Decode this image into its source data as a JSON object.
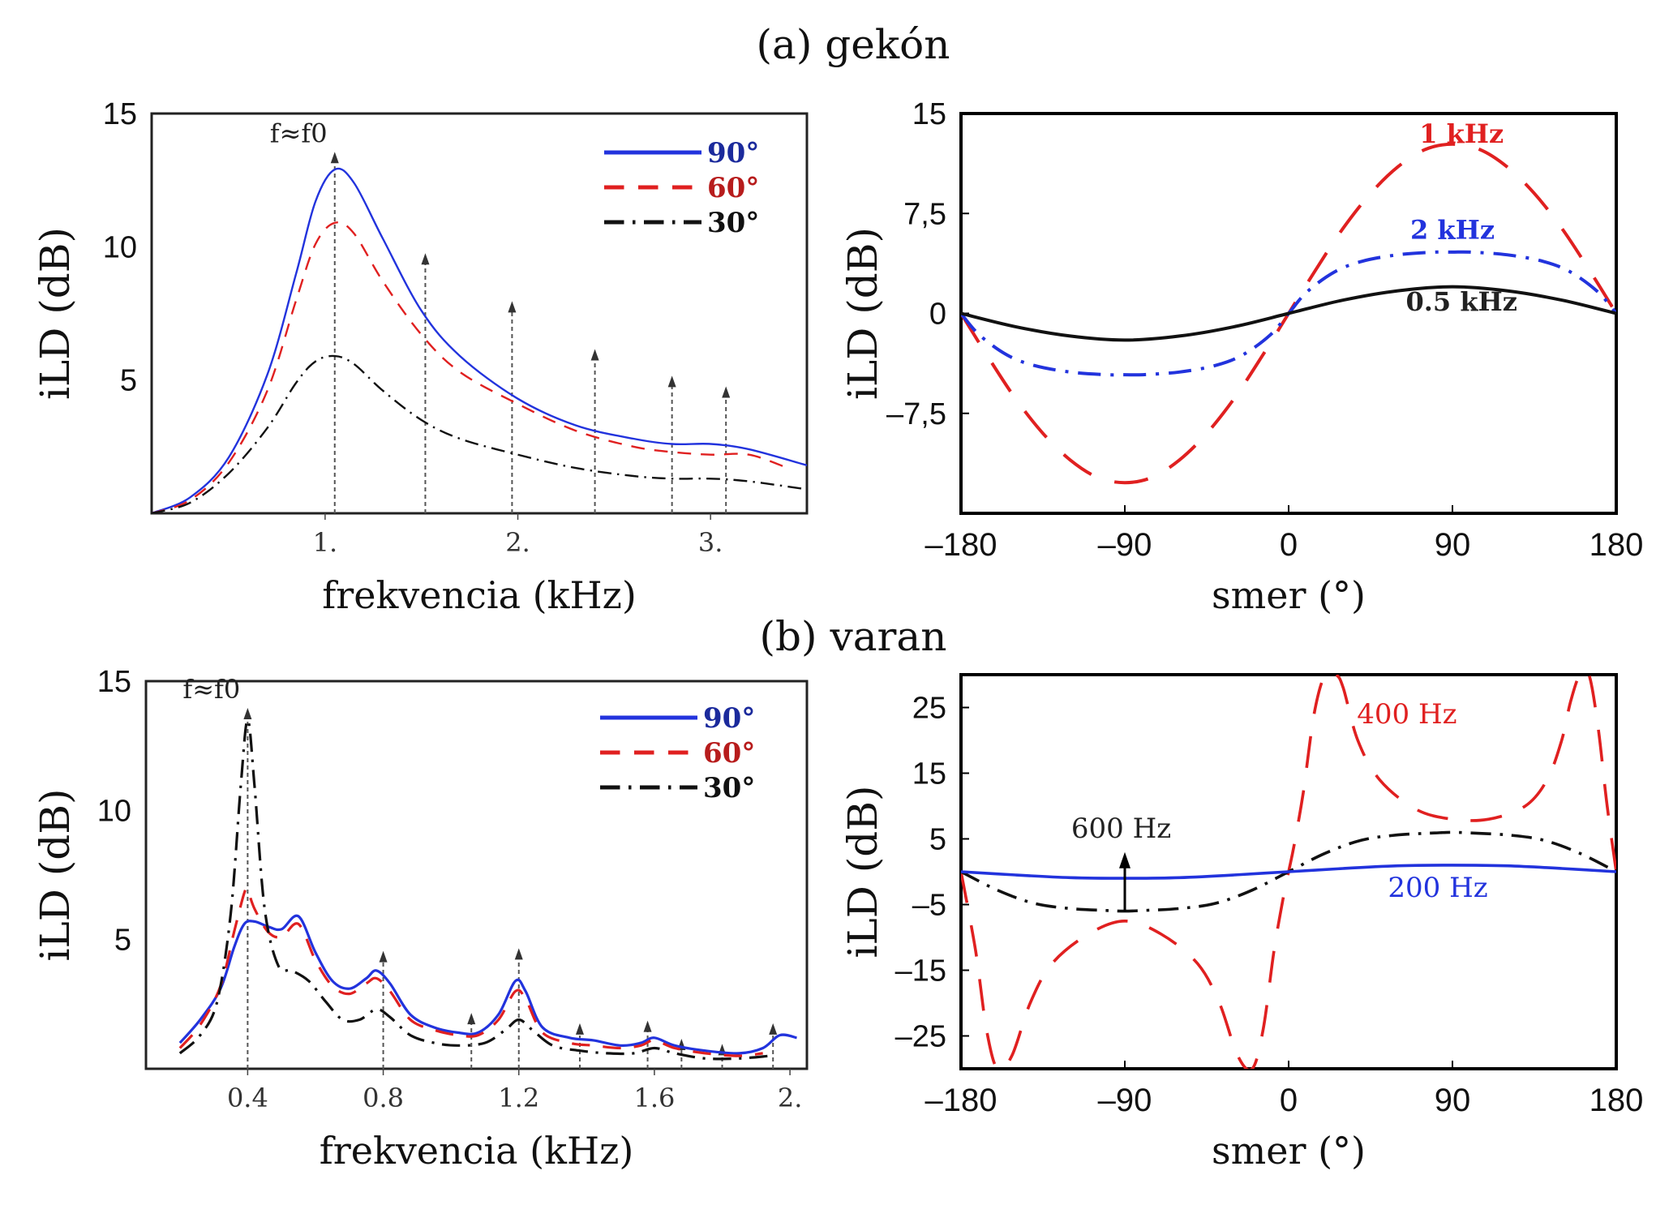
{
  "figure": {
    "panel_a_title": "(a) gekón",
    "panel_b_title": "(b) varan"
  },
  "colors": {
    "blue": "#2233dd",
    "red": "#e02020",
    "black": "#111111",
    "arrow": "#555555",
    "legend_blue": "#1b2a9c",
    "legend_red": "#b71c1c"
  },
  "chart_data": [
    {
      "id": "gekon-frequency",
      "type": "line",
      "xlabel": "frekvencia (kHz)",
      "ylabel": "iLD (dB)",
      "xlim": [
        0.1,
        3.5
      ],
      "ylim": [
        0,
        15
      ],
      "xticks": [
        1.0,
        2.0,
        3.0
      ],
      "xtick_labels": [
        "1.",
        "2.",
        "3."
      ],
      "yticks": [
        5,
        10,
        15
      ],
      "ytick_labels": [
        "5",
        "10",
        "15"
      ],
      "annotation": "f≈f0",
      "legend_position": "top-right",
      "series": [
        {
          "name": "90°",
          "style": "solid",
          "color": "blue",
          "x": [
            0.1,
            0.3,
            0.5,
            0.7,
            0.85,
            0.95,
            1.05,
            1.15,
            1.3,
            1.5,
            1.7,
            2.0,
            2.3,
            2.6,
            2.8,
            3.0,
            3.2,
            3.5
          ],
          "y": [
            0.0,
            0.6,
            2.1,
            5.2,
            9.0,
            11.7,
            12.9,
            12.4,
            10.3,
            7.6,
            5.9,
            4.3,
            3.3,
            2.8,
            2.6,
            2.6,
            2.4,
            1.8
          ]
        },
        {
          "name": "60°",
          "style": "dashed",
          "color": "red",
          "x": [
            0.1,
            0.3,
            0.5,
            0.7,
            0.85,
            0.95,
            1.05,
            1.15,
            1.3,
            1.5,
            1.7,
            2.0,
            2.3,
            2.6,
            2.8,
            3.0,
            3.2,
            3.4
          ],
          "y": [
            0.0,
            0.5,
            1.9,
            4.6,
            8.0,
            10.1,
            10.9,
            10.5,
            8.7,
            6.7,
            5.3,
            4.1,
            3.1,
            2.5,
            2.3,
            2.2,
            2.2,
            1.7
          ]
        },
        {
          "name": "30°",
          "style": "dashdot",
          "color": "black",
          "x": [
            0.1,
            0.3,
            0.5,
            0.7,
            0.85,
            0.95,
            1.05,
            1.15,
            1.3,
            1.5,
            1.7,
            2.0,
            2.3,
            2.6,
            2.8,
            3.0,
            3.2,
            3.5
          ],
          "y": [
            0.0,
            0.4,
            1.5,
            3.2,
            4.9,
            5.7,
            5.9,
            5.6,
            4.6,
            3.5,
            2.8,
            2.2,
            1.7,
            1.4,
            1.3,
            1.3,
            1.2,
            0.9
          ]
        }
      ],
      "arrows": [
        {
          "x": 1.05,
          "y": 13.5
        },
        {
          "x": 1.52,
          "y": 9.7
        },
        {
          "x": 1.97,
          "y": 7.9
        },
        {
          "x": 2.4,
          "y": 6.1
        },
        {
          "x": 2.8,
          "y": 5.1
        },
        {
          "x": 3.08,
          "y": 4.7
        }
      ]
    },
    {
      "id": "gekon-direction",
      "type": "line",
      "xlabel": "smer (°)",
      "ylabel": "iLD (dB)",
      "xlim": [
        -180,
        180
      ],
      "ylim": [
        -15,
        15
      ],
      "xticks": [
        -180,
        -90,
        0,
        90,
        180
      ],
      "xtick_labels": [
        "–180",
        "–90",
        "0",
        "90",
        "180"
      ],
      "yticks": [
        -7.5,
        0,
        7.5,
        15
      ],
      "ytick_labels": [
        "–7,5",
        "0",
        "7,5",
        "15"
      ],
      "series": [
        {
          "name": "1 kHz",
          "style": "dashed",
          "color": "red",
          "x": [
            -180,
            -165,
            -150,
            -135,
            -120,
            -105,
            -90,
            -75,
            -60,
            -45,
            -30,
            -15,
            0,
            15,
            30,
            45,
            60,
            75,
            90,
            105,
            120,
            135,
            150,
            165,
            180
          ],
          "y": [
            0.0,
            -3.3,
            -6.4,
            -9.0,
            -11.0,
            -12.3,
            -12.7,
            -12.3,
            -11.0,
            -9.0,
            -6.4,
            -3.3,
            0.0,
            3.3,
            6.4,
            9.0,
            11.0,
            12.3,
            12.7,
            12.3,
            11.0,
            9.0,
            6.4,
            3.3,
            0.0
          ]
        },
        {
          "name": "2 kHz",
          "style": "dashdot",
          "color": "blue",
          "x": [
            -180,
            -170,
            -155,
            -140,
            -120,
            -100,
            -90,
            -80,
            -60,
            -40,
            -25,
            -10,
            0,
            10,
            25,
            40,
            60,
            80,
            90,
            100,
            120,
            140,
            155,
            170,
            180
          ],
          "y": [
            0.0,
            -1.6,
            -3.1,
            -3.9,
            -4.4,
            -4.6,
            -4.6,
            -4.6,
            -4.4,
            -3.9,
            -3.1,
            -1.6,
            0.0,
            1.6,
            3.1,
            3.9,
            4.4,
            4.6,
            4.6,
            4.6,
            4.4,
            3.9,
            3.1,
            1.6,
            0.0
          ]
        },
        {
          "name": "0.5 kHz",
          "style": "solid",
          "color": "black",
          "x": [
            -180,
            -150,
            -120,
            -90,
            -60,
            -30,
            0,
            30,
            60,
            90,
            120,
            150,
            180
          ],
          "y": [
            0.0,
            -1.0,
            -1.7,
            -2.0,
            -1.7,
            -1.0,
            0.0,
            1.0,
            1.7,
            2.0,
            1.7,
            1.0,
            0.0
          ]
        }
      ],
      "series_labels": [
        {
          "series": "1 kHz",
          "x": 95,
          "y": 12.8
        },
        {
          "series": "2 kHz",
          "x": 90,
          "y": 5.6
        },
        {
          "series": "0.5 kHz",
          "x": 95,
          "y": 0.2
        }
      ]
    },
    {
      "id": "varan-frequency",
      "type": "line",
      "xlabel": "frekvencia (kHz)",
      "ylabel": "iLD (dB)",
      "xlim": [
        0.1,
        2.05
      ],
      "ylim": [
        0,
        15
      ],
      "xticks": [
        0.4,
        0.8,
        1.2,
        1.6,
        2.0
      ],
      "xtick_labels": [
        "0.4",
        "0.8",
        "1.2",
        "1.6",
        "2."
      ],
      "yticks": [
        5,
        10,
        15
      ],
      "ytick_labels": [
        "5",
        "10",
        "15"
      ],
      "annotation": "f≈f0",
      "legend_position": "top-right",
      "series": [
        {
          "name": "90°",
          "style": "solid",
          "color": "blue",
          "x": [
            0.2,
            0.26,
            0.32,
            0.36,
            0.39,
            0.42,
            0.46,
            0.5,
            0.55,
            0.6,
            0.65,
            0.7,
            0.75,
            0.78,
            0.82,
            0.88,
            0.95,
            1.02,
            1.08,
            1.14,
            1.19,
            1.22,
            1.27,
            1.35,
            1.42,
            1.5,
            1.56,
            1.6,
            1.66,
            1.75,
            1.85,
            1.92,
            1.97,
            2.02
          ],
          "y": [
            1.0,
            1.9,
            3.1,
            4.7,
            5.6,
            5.7,
            5.5,
            5.4,
            5.9,
            4.5,
            3.4,
            3.1,
            3.5,
            3.8,
            3.3,
            2.1,
            1.6,
            1.4,
            1.4,
            2.1,
            3.4,
            3.0,
            1.6,
            1.2,
            1.1,
            0.9,
            1.0,
            1.2,
            0.9,
            0.7,
            0.6,
            0.8,
            1.3,
            1.2
          ]
        },
        {
          "name": "60°",
          "style": "dashed",
          "color": "red",
          "x": [
            0.2,
            0.26,
            0.32,
            0.36,
            0.39,
            0.4,
            0.42,
            0.46,
            0.5,
            0.55,
            0.6,
            0.65,
            0.7,
            0.75,
            0.78,
            0.82,
            0.88,
            0.95,
            1.02,
            1.08,
            1.14,
            1.19,
            1.22,
            1.27,
            1.35,
            1.42,
            1.5,
            1.56,
            1.6,
            1.66,
            1.75,
            1.85,
            1.92
          ],
          "y": [
            0.8,
            1.7,
            3.2,
            5.3,
            6.8,
            6.9,
            6.2,
            5.3,
            5.1,
            5.6,
            4.2,
            3.2,
            2.9,
            3.3,
            3.5,
            3.0,
            1.9,
            1.5,
            1.3,
            1.3,
            1.9,
            3.0,
            2.7,
            1.4,
            1.0,
            0.9,
            0.8,
            0.9,
            1.1,
            0.8,
            0.6,
            0.5,
            0.6
          ]
        },
        {
          "name": "30°",
          "style": "dashdot",
          "color": "black",
          "x": [
            0.2,
            0.26,
            0.31,
            0.35,
            0.38,
            0.4,
            0.42,
            0.45,
            0.49,
            0.53,
            0.58,
            0.63,
            0.68,
            0.73,
            0.78,
            0.82,
            0.88,
            0.95,
            1.02,
            1.1,
            1.16,
            1.2,
            1.24,
            1.3,
            1.38,
            1.46,
            1.54,
            1.6,
            1.66,
            1.75,
            1.85,
            1.94
          ],
          "y": [
            0.6,
            1.3,
            2.6,
            6.0,
            11.0,
            13.5,
            11.0,
            6.2,
            4.0,
            3.8,
            3.4,
            2.6,
            1.9,
            1.9,
            2.3,
            2.0,
            1.3,
            1.0,
            0.9,
            1.0,
            1.5,
            1.9,
            1.5,
            0.9,
            0.7,
            0.6,
            0.6,
            0.8,
            0.6,
            0.4,
            0.4,
            0.5
          ]
        }
      ],
      "arrows": [
        {
          "x": 0.4,
          "y": 13.9
        },
        {
          "x": 0.8,
          "y": 4.5
        },
        {
          "x": 1.06,
          "y": 2.1
        },
        {
          "x": 1.2,
          "y": 4.6
        },
        {
          "x": 1.38,
          "y": 1.7
        },
        {
          "x": 1.58,
          "y": 1.8
        },
        {
          "x": 1.68,
          "y": 1.1
        },
        {
          "x": 1.8,
          "y": 0.9
        },
        {
          "x": 1.95,
          "y": 1.7
        }
      ]
    },
    {
      "id": "varan-direction",
      "type": "line",
      "xlabel": "smer (°)",
      "ylabel": "iLD (dB)",
      "xlim": [
        -180,
        180
      ],
      "ylim": [
        -30,
        30
      ],
      "xticks": [
        -180,
        -90,
        0,
        90,
        180
      ],
      "xtick_labels": [
        "–180",
        "–90",
        "0",
        "90",
        "180"
      ],
      "yticks": [
        -25,
        -15,
        -5,
        5,
        15,
        25
      ],
      "ytick_labels": [
        "–25",
        "–15",
        "–5",
        "5",
        "15",
        "25"
      ],
      "series": [
        {
          "name": "400 Hz",
          "style": "dashed",
          "color": "red",
          "x": [
            -180,
            -172,
            -166,
            -160,
            -152,
            -142,
            -130,
            -110,
            -90,
            -70,
            -50,
            -38,
            -28,
            -20,
            -14,
            -8,
            -3,
            0,
            3,
            8,
            14,
            20,
            26,
            30,
            38,
            50,
            70,
            90,
            110,
            130,
            142,
            150,
            155,
            160,
            165,
            170,
            175,
            180
          ],
          "y": [
            0.0,
            -12,
            -24,
            -30,
            -28,
            -20,
            -14,
            -9.5,
            -7.5,
            -9.5,
            -14,
            -20,
            -28,
            -30,
            -24,
            -12,
            -4,
            0.0,
            4,
            12,
            24,
            30,
            30,
            28,
            20,
            14,
            9.5,
            8,
            8,
            10,
            14,
            20,
            26,
            30,
            30,
            22,
            10,
            0.0
          ]
        },
        {
          "name": "600 Hz",
          "style": "dashdot",
          "color": "black",
          "x": [
            -180,
            -160,
            -140,
            -120,
            -100,
            -90,
            -80,
            -60,
            -40,
            -20,
            0,
            20,
            40,
            60,
            80,
            90,
            100,
            120,
            140,
            160,
            180
          ],
          "y": [
            0.0,
            -2.8,
            -4.8,
            -5.6,
            -5.9,
            -6.0,
            -5.9,
            -5.6,
            -4.8,
            -2.8,
            0.0,
            2.8,
            4.8,
            5.6,
            5.9,
            6.0,
            5.9,
            5.6,
            4.8,
            2.8,
            0.0
          ]
        },
        {
          "name": "200 Hz",
          "style": "solid",
          "color": "blue",
          "x": [
            -180,
            -150,
            -120,
            -90,
            -60,
            -30,
            0,
            30,
            60,
            90,
            120,
            150,
            180
          ],
          "y": [
            0.0,
            -0.5,
            -0.9,
            -1.0,
            -0.9,
            -0.5,
            0.0,
            0.5,
            0.9,
            1.0,
            0.9,
            0.5,
            0.0
          ]
        }
      ],
      "series_labels": [
        {
          "series": "400 Hz",
          "x": 65,
          "y": 22.6
        },
        {
          "series": "600 Hz",
          "x": -92,
          "y": 5.2
        },
        {
          "series": "200 Hz",
          "x": 82,
          "y": -3.8
        }
      ],
      "arrows": [
        {
          "x": -90,
          "y_from": -6,
          "y_to": 2.5
        }
      ]
    }
  ]
}
